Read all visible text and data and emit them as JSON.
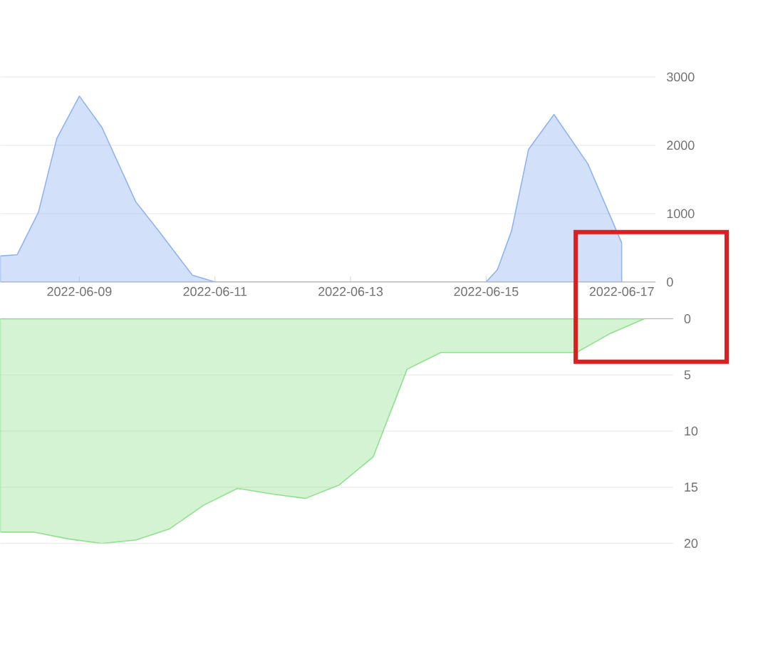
{
  "chart_data": [
    {
      "type": "area",
      "xlim": [
        "2022-06-07T20:00",
        "2022-06-17T12:00"
      ],
      "ylim": [
        0,
        3000
      ],
      "yticks": [
        0,
        1000,
        2000,
        3000
      ],
      "xticks": [
        "2022-06-09",
        "2022-06-11",
        "2022-06-13",
        "2022-06-15",
        "2022-06-17"
      ],
      "grid": "y",
      "series": [
        {
          "color": "#8fb4f0",
          "x": [
            "2022-06-07T20:00",
            "2022-06-08T02:00",
            "2022-06-08T09:30",
            "2022-06-08T16:00",
            "2022-06-09",
            "2022-06-09T08:00",
            "2022-06-09T20:00",
            "2022-06-10T04:00",
            "2022-06-10T16:00",
            "2022-06-11",
            "2022-06-15",
            "2022-06-15T04:00",
            "2022-06-15T09:00",
            "2022-06-15T15:00",
            "2022-06-16",
            "2022-06-16T12:00",
            "2022-06-17"
          ],
          "values": [
            380,
            400,
            1020,
            2100,
            2720,
            2260,
            1170,
            750,
            100,
            0,
            0,
            180,
            750,
            1940,
            2450,
            1730,
            570
          ]
        }
      ]
    },
    {
      "type": "area",
      "categories": [
        null,
        null,
        null,
        null,
        null,
        null,
        null,
        null,
        null,
        null,
        null,
        null,
        null,
        null,
        null,
        null,
        null,
        null,
        null,
        null
      ],
      "ylim": [
        20,
        0
      ],
      "yticks": [
        0,
        5,
        10,
        15,
        20
      ],
      "grid": "y",
      "tick_labels": "y",
      "series": [
        {
          "color": "#90e090",
          "values": [
            19,
            19,
            19.6,
            20,
            19.7,
            18.7,
            16.6,
            15.1,
            15.6,
            16,
            14.8,
            12.3,
            4.5,
            3,
            3,
            3,
            3,
            3,
            1.3,
            0
          ]
        }
      ]
    }
  ]
}
